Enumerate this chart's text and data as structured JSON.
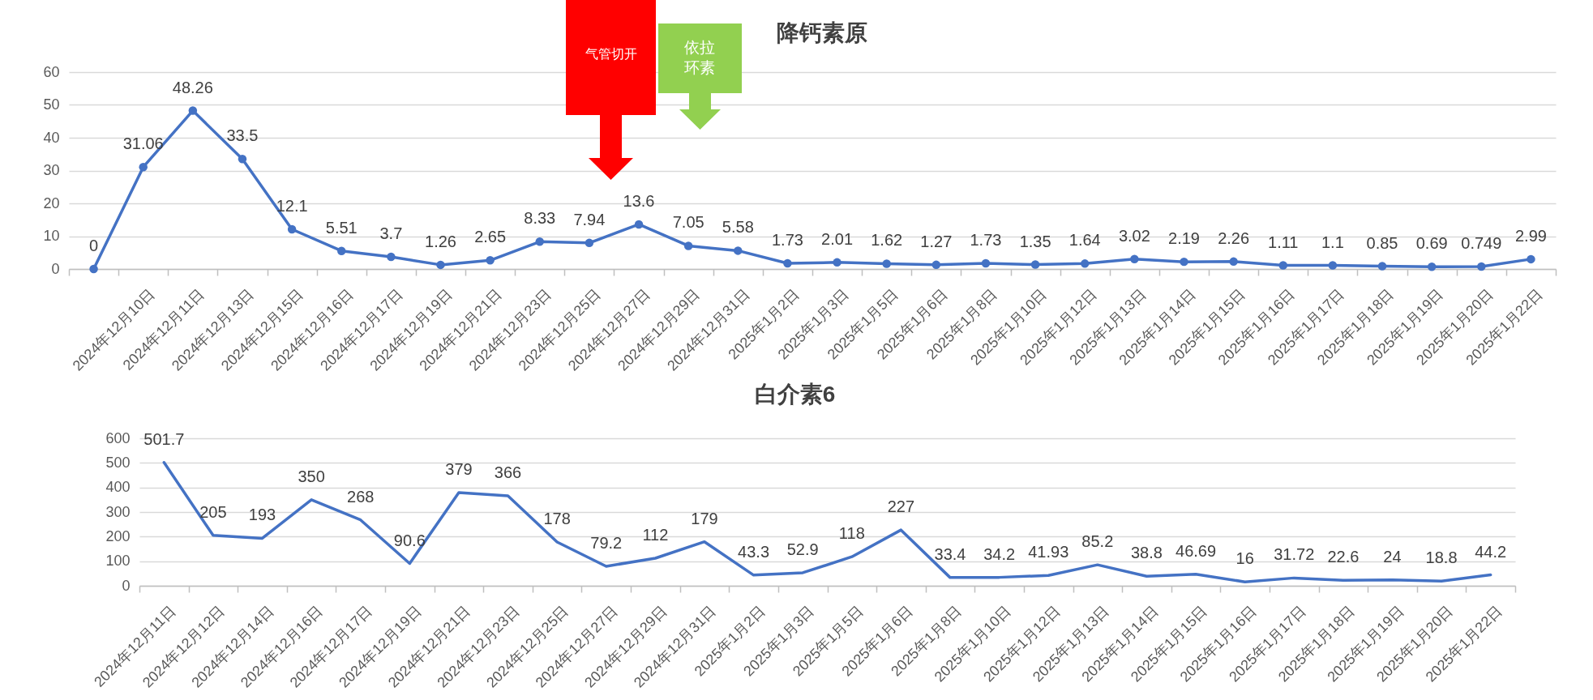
{
  "chart_data": [
    {
      "type": "line",
      "title": "降钙素原",
      "categories": [
        null,
        "2024年12月10日",
        "2024年12月11日",
        "2024年12月13日",
        "2024年12月15日",
        "2024年12月16日",
        "2024年12月17日",
        "2024年12月19日",
        "2024年12月21日",
        "2024年12月23日",
        "2024年12月25日",
        "2024年12月27日",
        "2024年12月29日",
        "2024年12月31日",
        "2025年1月2日",
        "2025年1月3日",
        "2025年1月5日",
        "2025年1月6日",
        "2025年1月8日",
        "2025年1月10日",
        "2025年1月12日",
        "2025年1月13日",
        "2025年1月14日",
        "2025年1月15日",
        "2025年1月16日",
        "2025年1月17日",
        "2025年1月18日",
        "2025年1月19日",
        "2025年1月20日",
        "2025年1月22日"
      ],
      "series": [
        {
          "color": "#4472c4",
          "values": [
            0,
            31.06,
            48.26,
            33.5,
            12.1,
            5.51,
            3.7,
            1.26,
            2.65,
            8.33,
            7.94,
            13.6,
            7.05,
            5.58,
            1.73,
            2.01,
            1.62,
            1.27,
            1.73,
            1.35,
            1.64,
            3.02,
            2.19,
            2.26,
            1.11,
            1.1,
            0.85,
            0.69,
            0.749,
            2.99
          ]
        }
      ],
      "ylim": [
        0,
        60
      ],
      "yticks": [
        0,
        10,
        20,
        30,
        40,
        50,
        60
      ],
      "grid": "y",
      "marker": "circle",
      "data_labels": true,
      "annotations": [
        "气管切开",
        "依拉环素"
      ]
    },
    {
      "type": "line",
      "title": "白介素6",
      "categories": [
        "2024年12月11日",
        "2024年12月12日",
        "2024年12月14日",
        "2024年12月16日",
        "2024年12月17日",
        "2024年12月19日",
        "2024年12月21日",
        "2024年12月23日",
        "2024年12月25日",
        "2024年12月27日",
        "2024年12月29日",
        "2024年12月31日",
        "2025年1月2日",
        "2025年1月3日",
        "2025年1月5日",
        "2025年1月6日",
        "2025年1月8日",
        "2025年1月10日",
        "2025年1月12日",
        "2025年1月13日",
        "2025年1月14日",
        "2025年1月15日",
        "2025年1月16日",
        "2025年1月17日",
        "2025年1月18日",
        "2025年1月19日",
        "2025年1月20日",
        "2025年1月22日"
      ],
      "series": [
        {
          "color": "#4472c4",
          "values": [
            501.7,
            205,
            193,
            350,
            268,
            90.6,
            379,
            366,
            178,
            79.2,
            112,
            179,
            43.3,
            52.9,
            118,
            227,
            33.4,
            34.2,
            41.93,
            85.2,
            38.8,
            46.69,
            16,
            31.72,
            22.6,
            24,
            18.8,
            44.2
          ]
        }
      ],
      "ylim": [
        0,
        600
      ],
      "yticks": [
        0,
        100,
        200,
        300,
        400,
        500,
        600
      ],
      "grid": "y",
      "data_labels": true
    }
  ]
}
